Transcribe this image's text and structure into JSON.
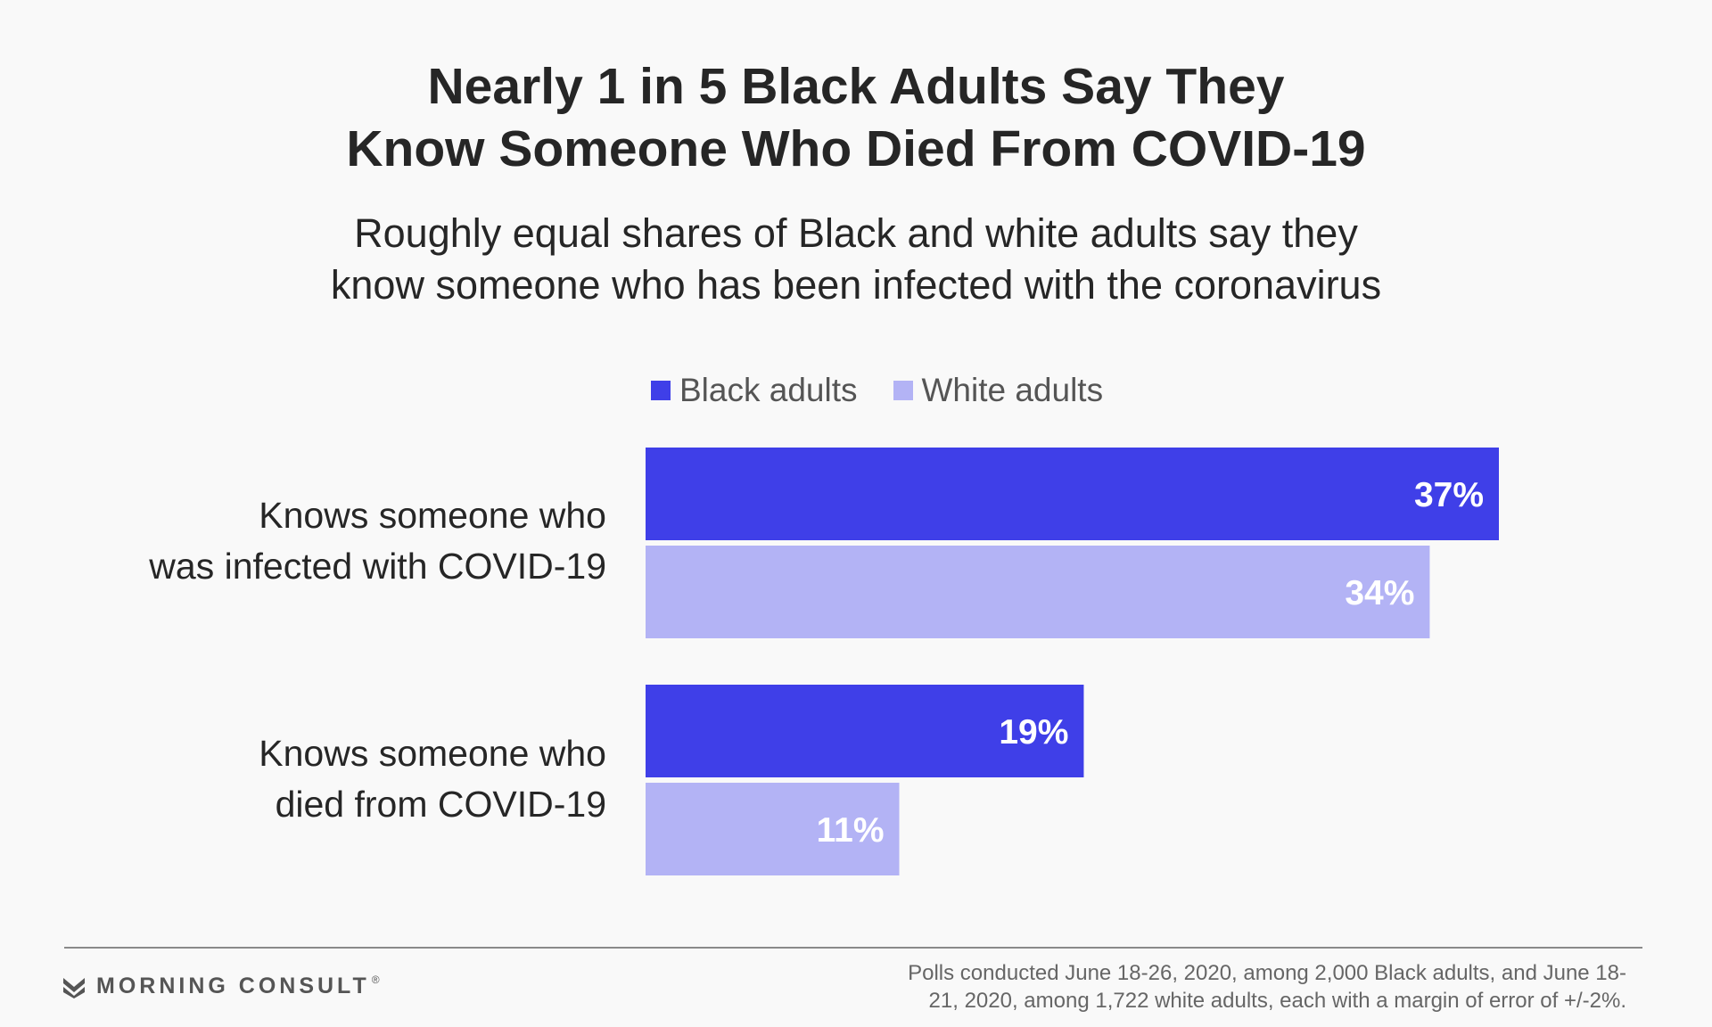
{
  "header": {
    "title_line1": "Nearly 1 in 5 Black Adults Say They",
    "title_line2": "Know Someone Who Died From COVID-19",
    "subtitle_line1": "Roughly equal shares of Black and white adults say they",
    "subtitle_line2": "know someone who has been infected with the coronavirus"
  },
  "chart_data": {
    "type": "bar",
    "orientation": "horizontal",
    "title": "Nearly 1 in 5 Black Adults Say They Know Someone Who Died From COVID-19",
    "subtitle": "Roughly equal shares of Black and white adults say they know someone who has been infected with the coronavirus",
    "categories": [
      {
        "line1": "Knows someone who",
        "line2": "was infected with COVID-19"
      },
      {
        "line1": "Knows someone who",
        "line2": "died from COVID-19"
      }
    ],
    "series": [
      {
        "name": "Black adults",
        "color": "#3f3fe8",
        "values": [
          37,
          19
        ],
        "labels": [
          "37%",
          "19%"
        ]
      },
      {
        "name": "White adults",
        "color": "#b3b3f5",
        "values": [
          34,
          11
        ],
        "labels": [
          "34%",
          "11%"
        ]
      }
    ],
    "value_unit": "%",
    "xlim": [
      0,
      37
    ],
    "legend_position": "top",
    "grid": false
  },
  "footer": {
    "brand": "MORNING CONSULT",
    "brand_mark": "®",
    "note_line1": "Polls conducted June 18-26, 2020, among 2,000 Black adults, and June 18-",
    "note_line2": "21, 2020, among 1,722 white adults, each with a margin of error of +/-2%."
  }
}
